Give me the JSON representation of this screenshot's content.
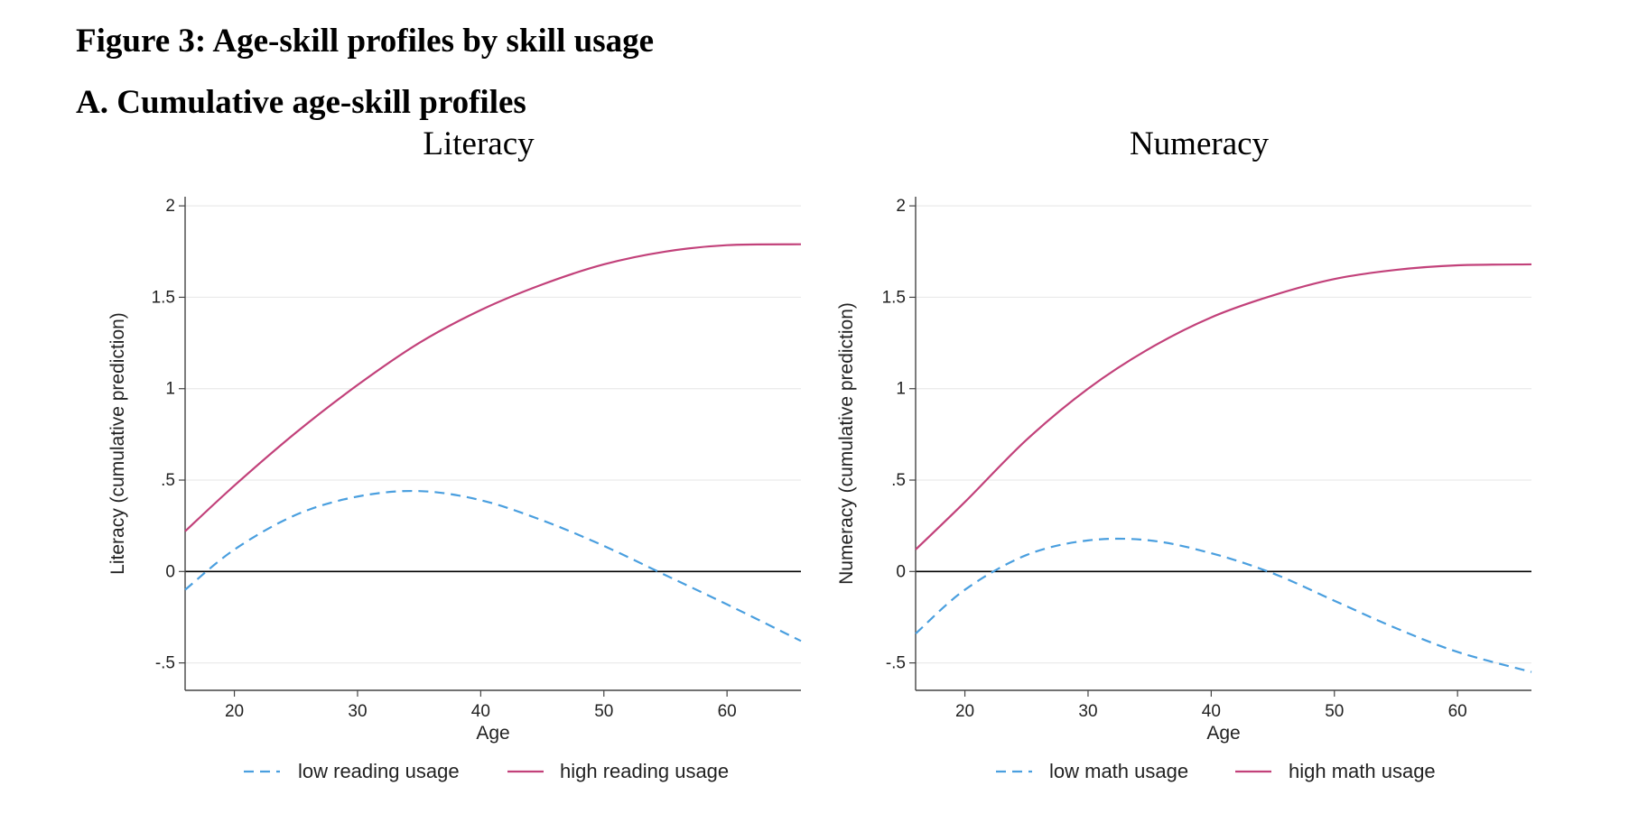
{
  "figure": {
    "title": "Figure 3: Age-skill profiles by skill usage",
    "panel": "A. Cumulative age-skill profiles"
  },
  "chart_data": [
    {
      "type": "line",
      "title": "Literacy",
      "xlabel": "Age",
      "ylabel": "Literacy (cumulative prediction)",
      "xlim": [
        16,
        66
      ],
      "ylim": [
        -0.65,
        2.05
      ],
      "xticks": [
        {
          "value": 20,
          "label": "20"
        },
        {
          "value": 30,
          "label": "30"
        },
        {
          "value": 40,
          "label": "40"
        },
        {
          "value": 50,
          "label": "50"
        },
        {
          "value": 60,
          "label": "60"
        }
      ],
      "yticks": [
        {
          "value": -0.5,
          "label": "-.5"
        },
        {
          "value": 0,
          "label": "0"
        },
        {
          "value": 0.5,
          "label": ".5"
        },
        {
          "value": 1,
          "label": "1"
        },
        {
          "value": 1.5,
          "label": "1.5"
        },
        {
          "value": 2,
          "label": "2"
        }
      ],
      "grid": true,
      "zero_line": true,
      "legend_position": "bottom",
      "x": [
        16,
        20,
        25,
        30,
        35,
        40,
        45,
        50,
        55,
        60,
        66
      ],
      "series": [
        {
          "name": "low reading usage",
          "style": "dashed",
          "color": "#4a9fdf",
          "values": [
            -0.1,
            0.12,
            0.31,
            0.41,
            0.44,
            0.39,
            0.28,
            0.14,
            -0.02,
            -0.18,
            -0.38
          ]
        },
        {
          "name": "high reading usage",
          "style": "solid",
          "color": "#c2417a",
          "values": [
            0.22,
            0.47,
            0.76,
            1.02,
            1.25,
            1.43,
            1.57,
            1.68,
            1.75,
            1.785,
            1.79
          ]
        }
      ]
    },
    {
      "type": "line",
      "title": "Numeracy",
      "xlabel": "Age",
      "ylabel": "Numeracy (cumulative prediction)",
      "xlim": [
        16,
        66
      ],
      "ylim": [
        -0.65,
        2.05
      ],
      "xticks": [
        {
          "value": 20,
          "label": "20"
        },
        {
          "value": 30,
          "label": "30"
        },
        {
          "value": 40,
          "label": "40"
        },
        {
          "value": 50,
          "label": "50"
        },
        {
          "value": 60,
          "label": "60"
        }
      ],
      "yticks": [
        {
          "value": -0.5,
          "label": "-.5"
        },
        {
          "value": 0,
          "label": "0"
        },
        {
          "value": 0.5,
          "label": ".5"
        },
        {
          "value": 1,
          "label": "1"
        },
        {
          "value": 1.5,
          "label": "1.5"
        },
        {
          "value": 2,
          "label": "2"
        }
      ],
      "grid": true,
      "zero_line": true,
      "legend_position": "bottom",
      "x": [
        16,
        20,
        25,
        30,
        35,
        40,
        45,
        50,
        55,
        60,
        66
      ],
      "series": [
        {
          "name": "low math usage",
          "style": "dashed",
          "color": "#4a9fdf",
          "values": [
            -0.34,
            -0.1,
            0.09,
            0.17,
            0.17,
            0.1,
            -0.01,
            -0.16,
            -0.31,
            -0.44,
            -0.55
          ]
        },
        {
          "name": "high math usage",
          "style": "solid",
          "color": "#c2417a",
          "values": [
            0.12,
            0.38,
            0.72,
            1.0,
            1.22,
            1.39,
            1.51,
            1.6,
            1.65,
            1.675,
            1.68
          ]
        }
      ]
    }
  ]
}
